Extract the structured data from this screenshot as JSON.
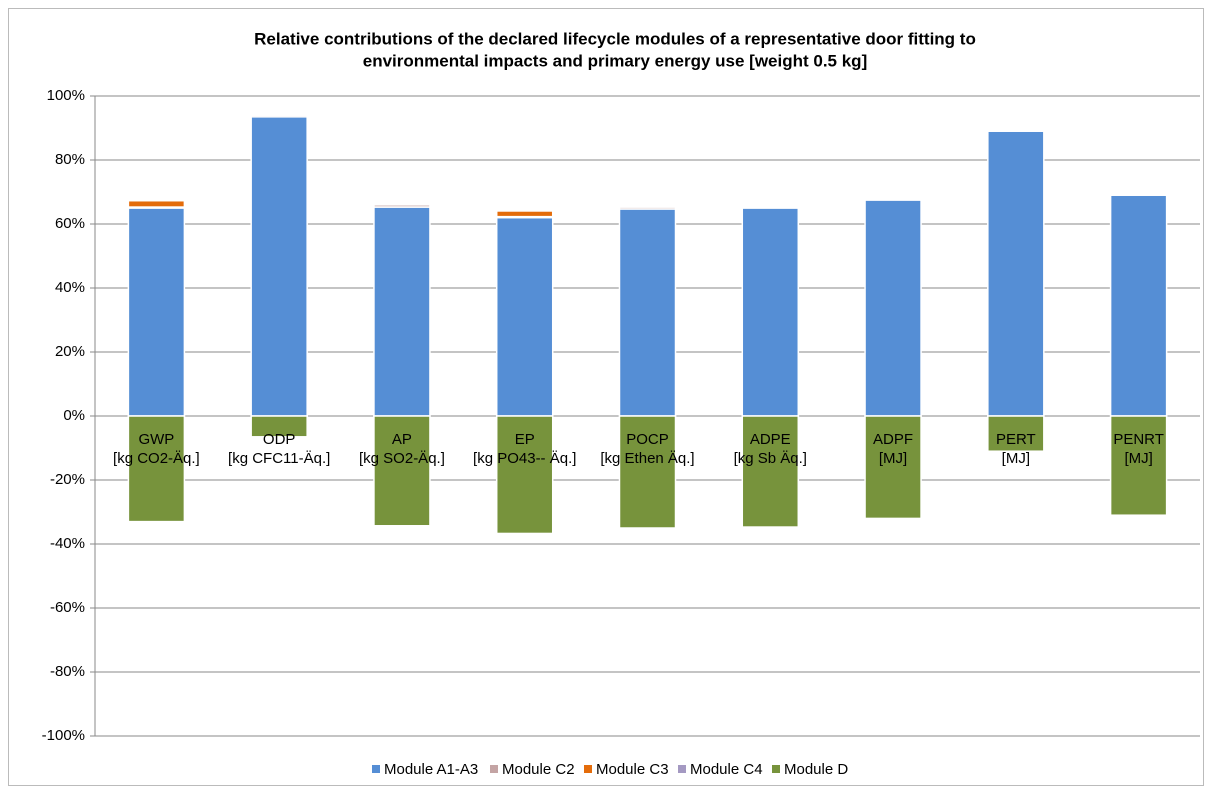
{
  "chart_data": {
    "type": "bar",
    "stacked": true,
    "title": [
      "Relative contributions of the declared lifecycle modules of a representative door fitting to",
      "environmental impacts and primary energy use [weight 0.5 kg]"
    ],
    "categories": [
      [
        "GWP",
        "[kg CO2-Äq.]"
      ],
      [
        "ODP",
        "[kg CFC11-Äq.]"
      ],
      [
        "AP",
        "[kg SO2-Äq.]"
      ],
      [
        "EP",
        "[kg PO43-- Äq.]"
      ],
      [
        "POCP",
        "[kg Ethen Äq.]"
      ],
      [
        "ADPE",
        "[kg Sb Äq.]"
      ],
      [
        "ADPF",
        "[MJ]"
      ],
      [
        "PERT",
        "[MJ]"
      ],
      [
        "PENRT",
        "[MJ]"
      ]
    ],
    "series": [
      {
        "name": "Module A1-A3",
        "color": "#558ed5",
        "values": [
          65,
          93.5,
          65.3,
          62,
          64.7,
          65,
          67.5,
          89,
          69
        ]
      },
      {
        "name": "Module C2",
        "color": "#c4a4a4",
        "values": [
          0.3,
          0.5,
          0.7,
          0.3,
          0.6,
          0.3,
          0.3,
          0.2,
          0.3
        ]
      },
      {
        "name": "Module C3",
        "color": "#e46c0a",
        "values": [
          2,
          0.2,
          0.3,
          1.8,
          0.3,
          0.1,
          0.4,
          0.2,
          0.3
        ]
      },
      {
        "name": "Module C4",
        "color": "#a499c2",
        "values": [
          0.1,
          0.1,
          0.1,
          0.1,
          0.1,
          0.1,
          0.1,
          0.1,
          0.1
        ]
      },
      {
        "name": "Module D",
        "color": "#77933c",
        "values": [
          -33,
          -6.5,
          -34.3,
          -36.7,
          -35,
          -34.7,
          -32,
          -11,
          -31
        ]
      }
    ],
    "ylim": [
      -100,
      100
    ],
    "yticks": [
      {
        "value": -100,
        "label": "-100%"
      },
      {
        "value": -80,
        "label": "-80%"
      },
      {
        "value": -60,
        "label": "-60%"
      },
      {
        "value": -40,
        "label": "-40%"
      },
      {
        "value": -20,
        "label": "-20%"
      },
      {
        "value": 0,
        "label": "0%"
      },
      {
        "value": 20,
        "label": "20%"
      },
      {
        "value": 40,
        "label": "40%"
      },
      {
        "value": 60,
        "label": "60%"
      },
      {
        "value": 80,
        "label": "80%"
      },
      {
        "value": 100,
        "label": "100%"
      }
    ],
    "grid": true,
    "legend": "bottom"
  }
}
